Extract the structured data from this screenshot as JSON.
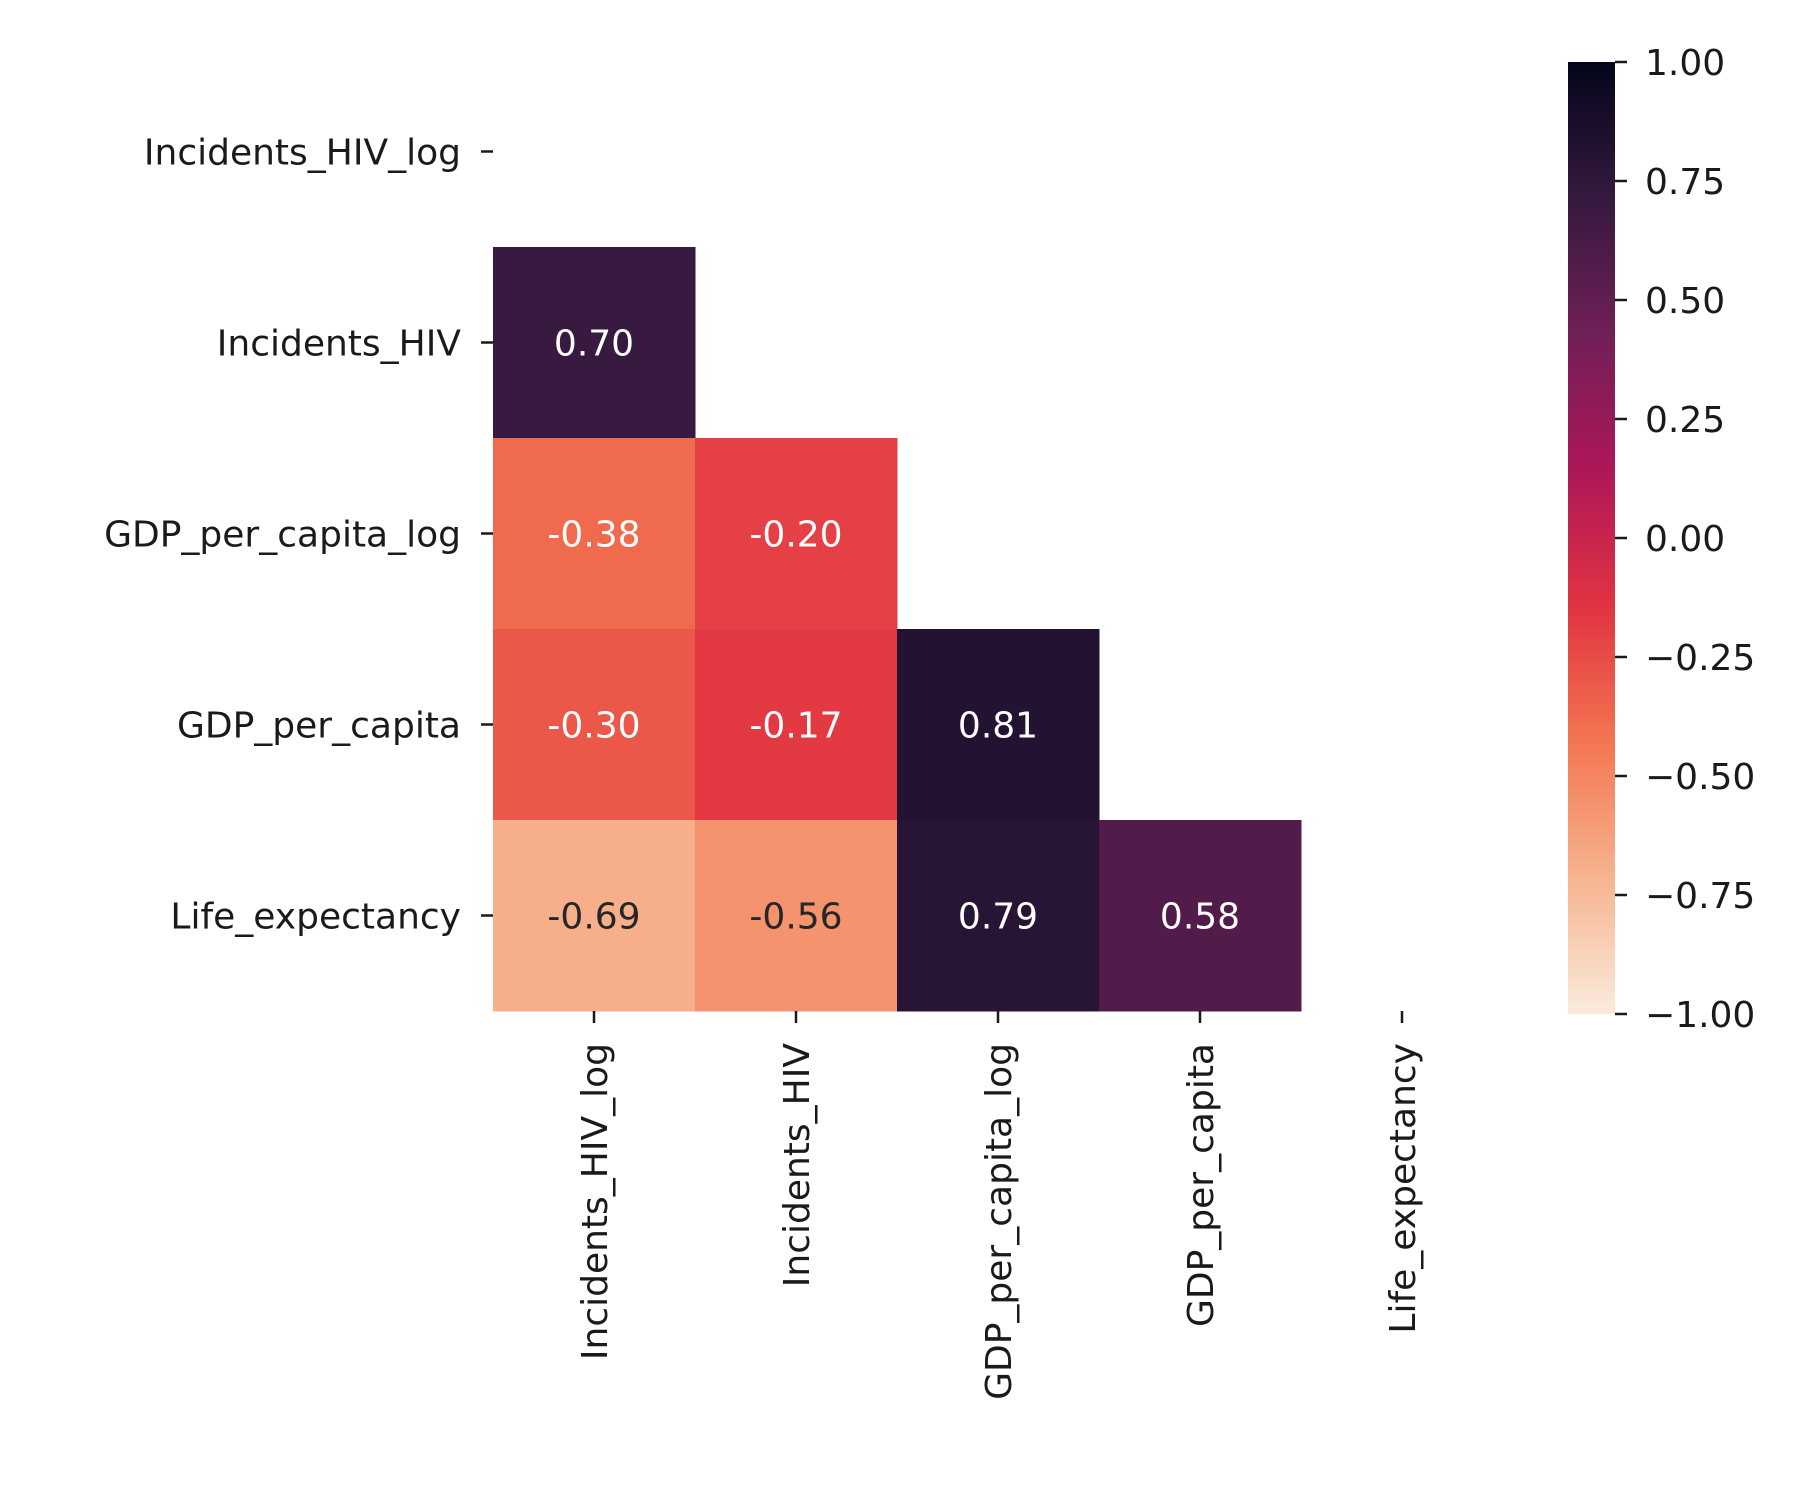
{
  "chart_data": {
    "type": "heatmap",
    "title": "",
    "xlabel": "",
    "ylabel": "",
    "variables": [
      "Incidents_HIV_log",
      "Incidents_HIV",
      "GDP_per_capita_log",
      "GDP_per_capita",
      "Life_expectancy"
    ],
    "mask": "upper-triangle-including-diagonal",
    "cells": [
      {
        "row": 1,
        "col": 0,
        "value": 0.7,
        "label": "0.70"
      },
      {
        "row": 2,
        "col": 0,
        "value": -0.38,
        "label": "-0.38"
      },
      {
        "row": 2,
        "col": 1,
        "value": -0.2,
        "label": "-0.20"
      },
      {
        "row": 3,
        "col": 0,
        "value": -0.3,
        "label": "-0.30"
      },
      {
        "row": 3,
        "col": 1,
        "value": -0.17,
        "label": "-0.17"
      },
      {
        "row": 3,
        "col": 2,
        "value": 0.81,
        "label": "0.81"
      },
      {
        "row": 4,
        "col": 0,
        "value": -0.69,
        "label": "-0.69"
      },
      {
        "row": 4,
        "col": 1,
        "value": -0.56,
        "label": "-0.56"
      },
      {
        "row": 4,
        "col": 2,
        "value": 0.79,
        "label": "0.79"
      },
      {
        "row": 4,
        "col": 3,
        "value": 0.58,
        "label": "0.58"
      }
    ],
    "vmin": -1.0,
    "vmax": 1.0,
    "colormap": "rocket_r",
    "colormap_stops": [
      "#faebdd",
      "#f6b48f",
      "#f37651",
      "#e13342",
      "#ad1759",
      "#701f57",
      "#35193e",
      "#03051a"
    ],
    "colorbar": {
      "ticks": [
        1.0,
        0.75,
        0.5,
        0.25,
        0.0,
        -0.25,
        -0.5,
        -0.75,
        -1.0
      ],
      "tick_labels": [
        "1.00",
        "0.75",
        "0.50",
        "0.25",
        "0.00",
        "−0.25",
        "−0.50",
        "−0.75",
        "−1.00"
      ]
    },
    "grid": false
  }
}
